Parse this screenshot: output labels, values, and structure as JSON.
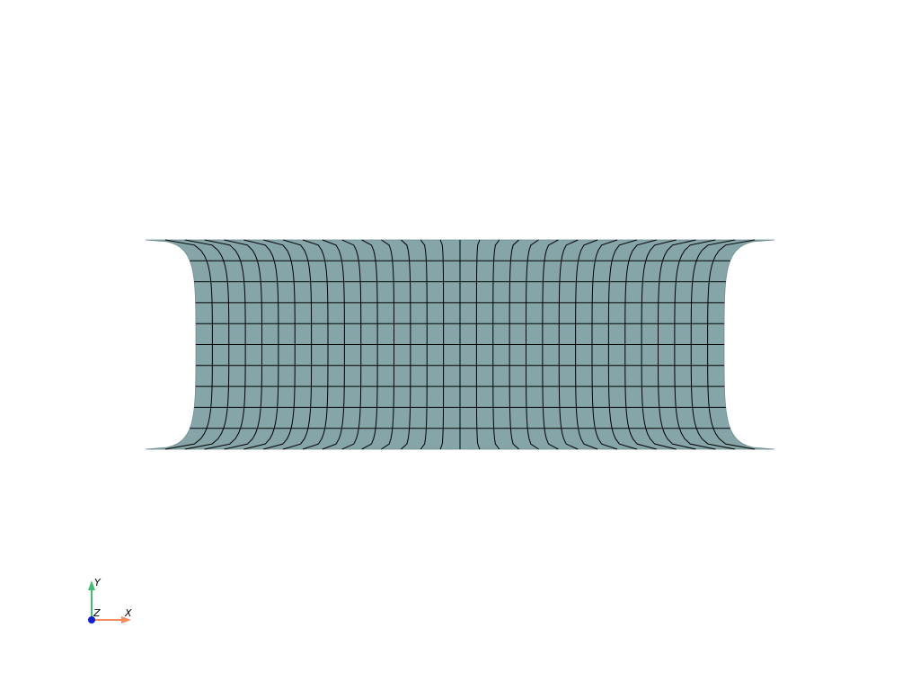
{
  "mesh": {
    "fill_color": "#86a5a8",
    "edge_color": "#000000",
    "columns": 32,
    "rows": 10
  },
  "axes": {
    "x_label": "X",
    "y_label": "Y",
    "z_label": "Z",
    "x_color": "#f28c5d",
    "y_color": "#44bb77",
    "z_color": "#1122cc"
  }
}
